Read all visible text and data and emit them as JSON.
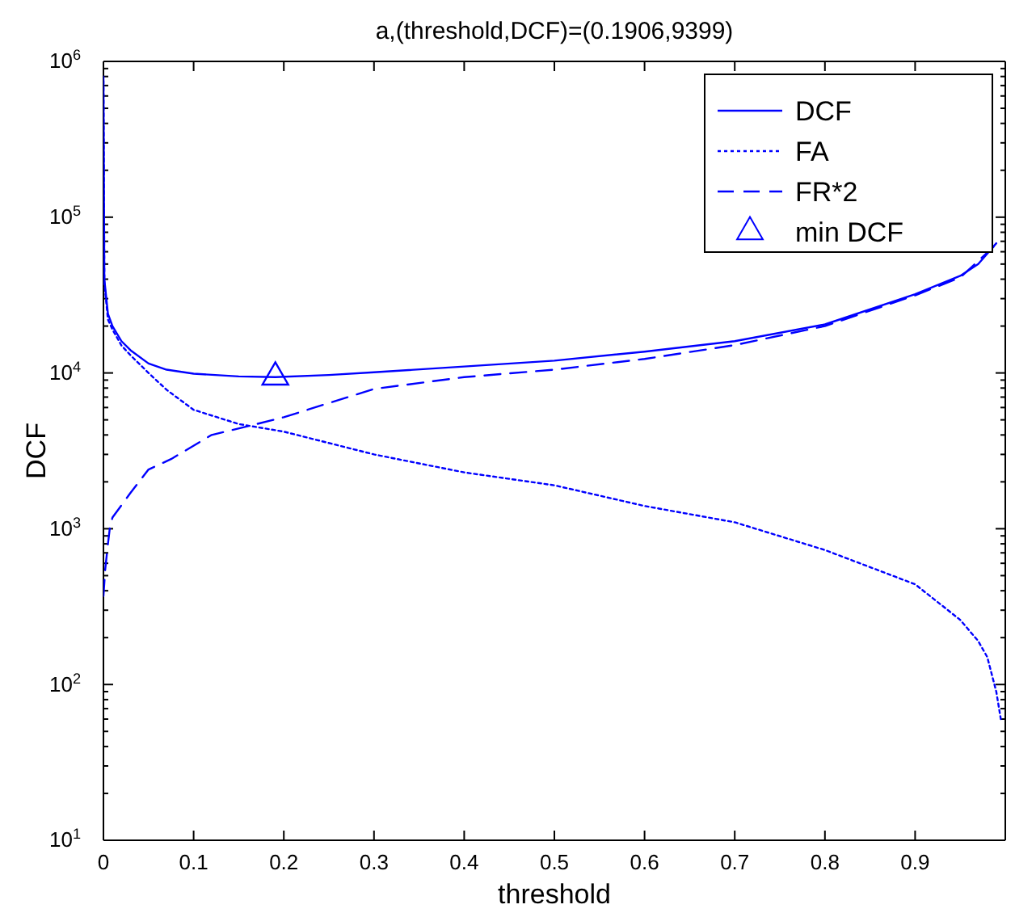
{
  "chart_data": {
    "type": "line",
    "title": "a,(threshold,DCF)=(0.1906,9399)",
    "xlabel": "threshold",
    "ylabel": "DCF",
    "xlim": [
      0,
      1
    ],
    "xticks": [
      0,
      0.1,
      0.2,
      0.3,
      0.4,
      0.5,
      0.6,
      0.7,
      0.8,
      0.9
    ],
    "ylim": [
      10,
      1000000
    ],
    "log": "y",
    "yticks": [
      {
        "value": 10,
        "label": "10$^{1}$"
      },
      {
        "value": 20,
        "label": null
      },
      {
        "value": 30,
        "label": null
      },
      {
        "value": 40,
        "label": null
      },
      {
        "value": 50,
        "label": null
      },
      {
        "value": 60,
        "label": null
      },
      {
        "value": 70,
        "label": null
      },
      {
        "value": 80,
        "label": null
      },
      {
        "value": 90,
        "label": null
      },
      {
        "value": 100,
        "label": "10$^{2}$"
      },
      {
        "value": 200,
        "label": null
      },
      {
        "value": 300,
        "label": null
      },
      {
        "value": 400,
        "label": null
      },
      {
        "value": 500,
        "label": null
      },
      {
        "value": 600,
        "label": null
      },
      {
        "value": 700,
        "label": null
      },
      {
        "value": 800,
        "label": null
      },
      {
        "value": 900,
        "label": null
      },
      {
        "value": 1000,
        "label": "10$^{3}$"
      },
      {
        "value": 2000,
        "label": null
      },
      {
        "value": 3000,
        "label": null
      },
      {
        "value": 4000,
        "label": null
      },
      {
        "value": 5000,
        "label": null
      },
      {
        "value": 6000,
        "label": null
      },
      {
        "value": 7000,
        "label": null
      },
      {
        "value": 8000,
        "label": null
      },
      {
        "value": 9000,
        "label": null
      },
      {
        "value": 10000,
        "label": "10$^{4}$"
      },
      {
        "value": 20000,
        "label": null
      },
      {
        "value": 30000,
        "label": null
      },
      {
        "value": 40000,
        "label": null
      },
      {
        "value": 50000,
        "label": null
      },
      {
        "value": 60000,
        "label": null
      },
      {
        "value": 70000,
        "label": null
      },
      {
        "value": 80000,
        "label": null
      },
      {
        "value": 90000,
        "label": null
      },
      {
        "value": 100000,
        "label": "10$^{5}$"
      },
      {
        "value": 200000,
        "label": null
      },
      {
        "value": 300000,
        "label": null
      },
      {
        "value": 400000,
        "label": null
      },
      {
        "value": 500000,
        "label": null
      },
      {
        "value": 600000,
        "label": null
      },
      {
        "value": 700000,
        "label": null
      },
      {
        "value": 800000,
        "label": null
      },
      {
        "value": 900000,
        "label": null
      },
      {
        "value": 1000000,
        "label": "10$^{6}$"
      }
    ],
    "grid": false,
    "legend": "top right",
    "series": [
      {
        "name": "DCF",
        "type": "line",
        "line_style": "solid",
        "color": "#0000ff",
        "x": [
          0,
          0.001,
          0.005,
          0.01,
          0.02,
          0.03,
          0.05,
          0.07,
          0.1,
          0.15,
          0.1906,
          0.25,
          0.3,
          0.4,
          0.5,
          0.6,
          0.7,
          0.8,
          0.9,
          0.95,
          0.97,
          0.99
        ],
        "values": [
          800000,
          40000,
          24000,
          20000,
          16000,
          14000,
          11500,
          10500,
          9900,
          9500,
          9399,
          9700,
          10100,
          11000,
          12000,
          13700,
          16000,
          20500,
          32000,
          42000,
          50000,
          68000
        ]
      },
      {
        "name": "FA",
        "type": "line",
        "line_style": "dotted",
        "color": "#0000ff",
        "x": [
          0,
          0.001,
          0.005,
          0.01,
          0.02,
          0.03,
          0.05,
          0.07,
          0.1,
          0.15,
          0.2,
          0.3,
          0.4,
          0.5,
          0.6,
          0.7,
          0.8,
          0.9,
          0.95,
          0.97,
          0.98,
          0.99,
          0.995
        ],
        "values": [
          750000,
          38000,
          22000,
          19000,
          15000,
          13000,
          10000,
          7800,
          5800,
          4700,
          4200,
          3000,
          2300,
          1900,
          1400,
          1100,
          730,
          440,
          260,
          190,
          150,
          90,
          60
        ]
      },
      {
        "name": "FR*2",
        "type": "line",
        "line_style": "dashed",
        "color": "#0000ff",
        "x": [
          0,
          0.002,
          0.005,
          0.007,
          0.01,
          0.03,
          0.05,
          0.075,
          0.12,
          0.17,
          0.2,
          0.3,
          0.4,
          0.5,
          0.6,
          0.7,
          0.8,
          0.9,
          0.95,
          0.99
        ],
        "values": [
          370,
          550,
          800,
          1000,
          1180,
          1700,
          2400,
          2800,
          4000,
          4700,
          5200,
          7900,
          9400,
          10500,
          12300,
          15100,
          20000,
          31500,
          41000,
          67000
        ]
      },
      {
        "name": "min DCF",
        "type": "scatter",
        "marker": "triangle",
        "color": "#0000ff",
        "x": [
          0.1906
        ],
        "values": [
          9399
        ]
      }
    ]
  }
}
